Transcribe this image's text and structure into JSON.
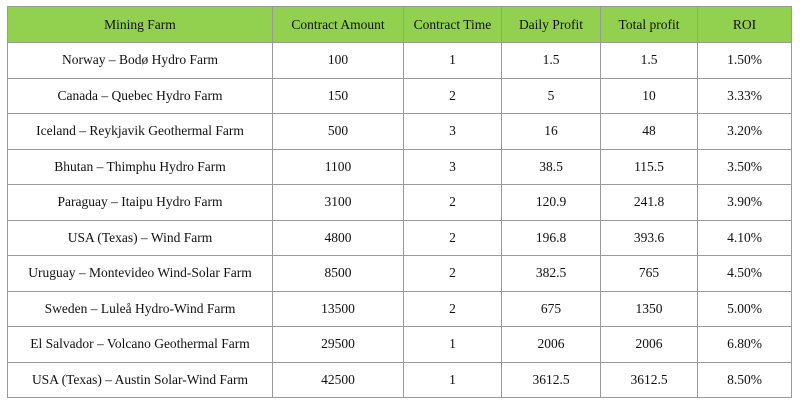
{
  "table": {
    "header": [
      "Mining Farm",
      "Contract Amount",
      "Contract Time",
      "Daily Profit",
      "Total profit",
      "ROI"
    ],
    "rows": [
      [
        "Norway – Bodø Hydro Farm",
        "100",
        "1",
        "1.5",
        "1.5",
        "1.50%"
      ],
      [
        "Canada – Quebec Hydro Farm",
        "150",
        "2",
        "5",
        "10",
        "3.33%"
      ],
      [
        "Iceland – Reykjavik Geothermal Farm",
        "500",
        "3",
        "16",
        "48",
        "3.20%"
      ],
      [
        "Bhutan – Thimphu Hydro Farm",
        "1100",
        "3",
        "38.5",
        "115.5",
        "3.50%"
      ],
      [
        "Paraguay – Itaipu Hydro Farm",
        "3100",
        "2",
        "120.9",
        "241.8",
        "3.90%"
      ],
      [
        "USA (Texas) – Wind Farm",
        "4800",
        "2",
        "196.8",
        "393.6",
        "4.10%"
      ],
      [
        "Uruguay – Montevideo Wind-Solar Farm",
        "8500",
        "2",
        "382.5",
        "765",
        "4.50%"
      ],
      [
        "Sweden – Luleå Hydro-Wind Farm",
        "13500",
        "2",
        "675",
        "1350",
        "5.00%"
      ],
      [
        "El Salvador – Volcano Geothermal Farm",
        "29500",
        "1",
        "2006",
        "2006",
        "6.80%"
      ],
      [
        "USA (Texas) – Austin Solar-Wind Farm",
        "42500",
        "1",
        "3612.5",
        "3612.5",
        "8.50%"
      ]
    ]
  }
}
